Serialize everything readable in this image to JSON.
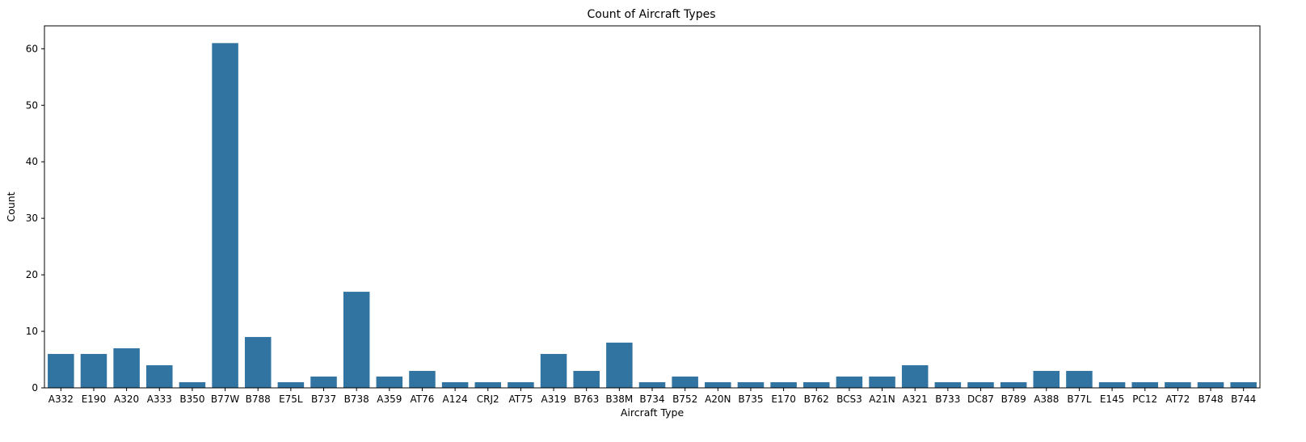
{
  "chart_data": {
    "type": "bar",
    "title": "Count of Aircraft Types",
    "xlabel": "Aircraft Type",
    "ylabel": "Count",
    "ylim": [
      0,
      64.05
    ],
    "yticks": [
      0,
      10,
      20,
      30,
      40,
      50,
      60
    ],
    "grid": false,
    "bar_color": "#3274a1",
    "categories": [
      "A332",
      "E190",
      "A320",
      "A333",
      "B350",
      "B77W",
      "B788",
      "E75L",
      "B737",
      "B738",
      "A359",
      "AT76",
      "A124",
      "CRJ2",
      "AT75",
      "A319",
      "B763",
      "B38M",
      "B734",
      "B752",
      "A20N",
      "B735",
      "E170",
      "B762",
      "BCS3",
      "A21N",
      "A321",
      "B733",
      "DC87",
      "B789",
      "A388",
      "B77L",
      "E145",
      "PC12",
      "AT72",
      "B748",
      "B744"
    ],
    "values": [
      6,
      6,
      7,
      4,
      1,
      61,
      9,
      1,
      2,
      17,
      2,
      3,
      1,
      1,
      1,
      6,
      3,
      8,
      1,
      2,
      1,
      1,
      1,
      1,
      2,
      2,
      4,
      1,
      1,
      1,
      3,
      3,
      1,
      1,
      1,
      1,
      1
    ]
  }
}
